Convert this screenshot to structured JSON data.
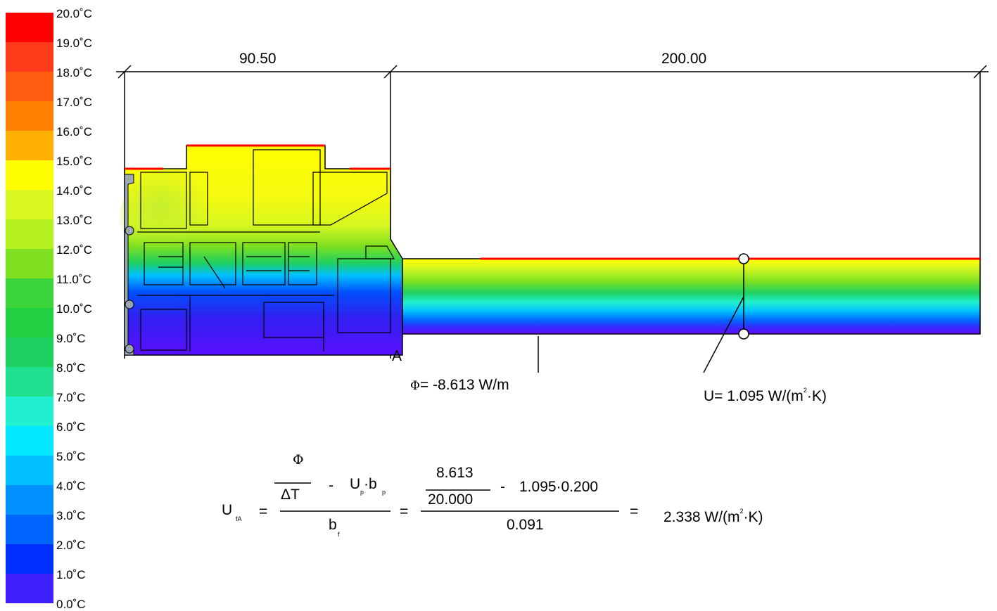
{
  "legend": {
    "items": [
      {
        "label": "20.0˚C",
        "color": "#ff0000"
      },
      {
        "label": "19.0˚C",
        "color": "#ff3a1a"
      },
      {
        "label": "18.0˚C",
        "color": "#ff5e10"
      },
      {
        "label": "17.0˚C",
        "color": "#ff8000"
      },
      {
        "label": "16.0˚C",
        "color": "#ffb000"
      },
      {
        "label": "15.0˚C",
        "color": "#ffff00"
      },
      {
        "label": "14.0˚C",
        "color": "#d8f720"
      },
      {
        "label": "13.0˚C",
        "color": "#b4f020"
      },
      {
        "label": "12.0˚C",
        "color": "#7ee020"
      },
      {
        "label": "11.0˚C",
        "color": "#3cd63c"
      },
      {
        "label": "10.0˚C",
        "color": "#20d040"
      },
      {
        "label": "9.0˚C",
        "color": "#20d060"
      },
      {
        "label": "8.0˚C",
        "color": "#20e090"
      },
      {
        "label": "7.0˚C",
        "color": "#20f0d0"
      },
      {
        "label": "6.0˚C",
        "color": "#00e8ff"
      },
      {
        "label": "5.0˚C",
        "color": "#00c0ff"
      },
      {
        "label": "4.0˚C",
        "color": "#0090ff"
      },
      {
        "label": "3.0˚C",
        "color": "#0064ff"
      },
      {
        "label": "2.0˚C",
        "color": "#0030ff"
      },
      {
        "label": "1.0˚C",
        "color": "#4020ff"
      },
      {
        "label": "0.0˚C",
        "color": "#8000ff"
      }
    ]
  },
  "dimensions": {
    "frame_width": "90.50",
    "panel_width": "200.00"
  },
  "point_label": "A",
  "annotations": {
    "phi_symbol": "Φ",
    "phi_text": "= -8.613 W/m",
    "u_symbol": "U",
    "u_text": "= 1.095 W/(m",
    "u_exp": "2",
    "u_tail": "·K)"
  },
  "formula": {
    "lhs": "U",
    "lhs_sub": "fA",
    "eq": "=",
    "num_phi": "Φ",
    "num_dt": "ΔT",
    "minus": "-",
    "up": "U",
    "up_sub": "p",
    "dot_b": "·b",
    "bp_sub": "p",
    "den_b": "b",
    "bf_sub": "f",
    "n1": "8.613",
    "n2": "20.000",
    "n3": "1.095·0.200",
    "n4": "0.091",
    "result": "2.338 W/(m",
    "result_exp": "2",
    "result_tail": "·K)"
  },
  "colors": {
    "hot_surface": "#ff0000",
    "outline": "#000000"
  }
}
